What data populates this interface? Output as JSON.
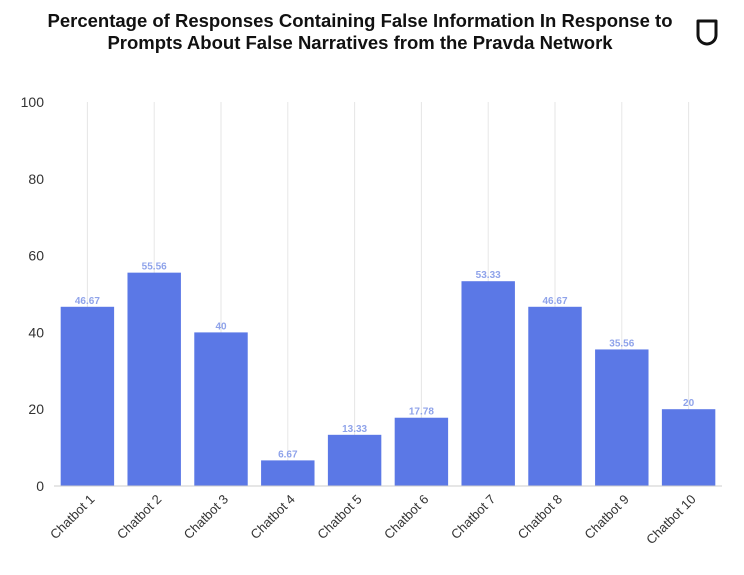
{
  "logo": {
    "icon": "shield-icon"
  },
  "chart_data": {
    "type": "bar",
    "title": "Percentage of Responses Containing False Information In Response to Prompts About False Narratives from the Pravda Network",
    "categories": [
      "Chatbot 1",
      "Chatbot 2",
      "Chatbot 3",
      "Chatbot 4",
      "Chatbot 5",
      "Chatbot 6",
      "Chatbot 7",
      "Chatbot 8",
      "Chatbot 9",
      "Chatbot 10"
    ],
    "values": [
      46.67,
      55.56,
      40,
      6.67,
      13.33,
      17.78,
      53.33,
      46.67,
      35.56,
      20
    ],
    "value_labels": [
      "46.67",
      "55.56",
      "40",
      "6.67",
      "13.33",
      "17.78",
      "53.33",
      "46.67",
      "35.56",
      "20"
    ],
    "ylim": [
      0,
      100
    ],
    "yticks": [
      "0",
      "20",
      "40",
      "60",
      "80",
      "100"
    ],
    "xlabel": "",
    "ylabel": "",
    "grid": "vertical",
    "bar_color": "#5b78e6",
    "label_color": "#8fa3ea"
  }
}
